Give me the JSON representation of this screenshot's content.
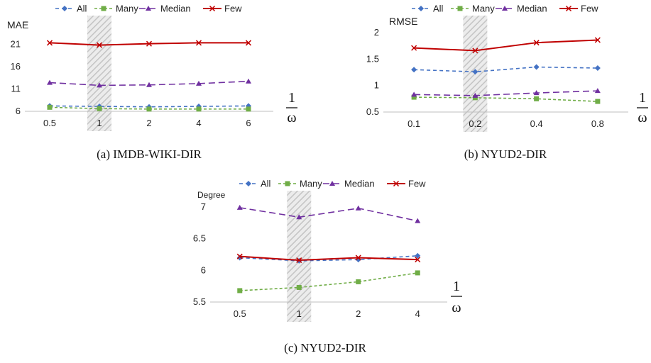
{
  "colors": {
    "All": "#4472C4",
    "Many": "#70AD47",
    "Median": "#7030A0",
    "Few": "#C00000"
  },
  "x_axis_symbol": {
    "numerator": "1",
    "denominator": "ω"
  },
  "chart_data": [
    {
      "type": "line",
      "caption": "(a) IMDB-WIKI-DIR",
      "ylabel": "MAE",
      "categories": [
        "0.5",
        "1",
        "2",
        "4",
        "6"
      ],
      "highlight_category": "1",
      "yticks": [
        "6",
        "11",
        "16",
        "21"
      ],
      "ylim": [
        6,
        22
      ],
      "grid": false,
      "legend": "top",
      "series": [
        {
          "name": "All",
          "values": [
            7.2,
            7.1,
            7.0,
            7.1,
            7.2
          ]
        },
        {
          "name": "Many",
          "values": [
            6.9,
            6.6,
            6.5,
            6.5,
            6.5
          ]
        },
        {
          "name": "Median",
          "values": [
            12.4,
            11.8,
            11.9,
            12.2,
            12.7
          ]
        },
        {
          "name": "Few",
          "values": [
            21.3,
            20.8,
            21.1,
            21.3,
            21.3
          ]
        }
      ]
    },
    {
      "type": "line",
      "caption": "(b) NYUD2-DIR",
      "ylabel": "RMSE",
      "categories": [
        "0.1",
        "0.2",
        "0.4",
        "0.8"
      ],
      "highlight_category": "0.2",
      "yticks": [
        "0.5",
        "1",
        "1.5",
        "2"
      ],
      "ylim": [
        0.5,
        2
      ],
      "grid": false,
      "legend": "top",
      "series": [
        {
          "name": "All",
          "values": [
            1.3,
            1.26,
            1.35,
            1.33
          ]
        },
        {
          "name": "Many",
          "values": [
            0.78,
            0.77,
            0.75,
            0.7
          ]
        },
        {
          "name": "Median",
          "values": [
            0.83,
            0.81,
            0.86,
            0.9
          ]
        },
        {
          "name": "Few",
          "values": [
            1.71,
            1.66,
            1.81,
            1.86
          ]
        }
      ]
    },
    {
      "type": "line",
      "caption": "(c) NYUD2-DIR",
      "ylabel": "Degree",
      "categories": [
        "0.5",
        "1",
        "2",
        "4"
      ],
      "highlight_category": "1",
      "yticks": [
        "5.5",
        "6",
        "6.5",
        "7"
      ],
      "ylim": [
        5.5,
        7
      ],
      "grid": false,
      "legend": "top",
      "series": [
        {
          "name": "All",
          "values": [
            6.2,
            6.15,
            6.17,
            6.23
          ]
        },
        {
          "name": "Many",
          "values": [
            5.68,
            5.73,
            5.82,
            5.96
          ]
        },
        {
          "name": "Median",
          "values": [
            6.99,
            6.84,
            6.98,
            6.78
          ]
        },
        {
          "name": "Few",
          "values": [
            6.22,
            6.16,
            6.2,
            6.17
          ]
        }
      ]
    }
  ]
}
